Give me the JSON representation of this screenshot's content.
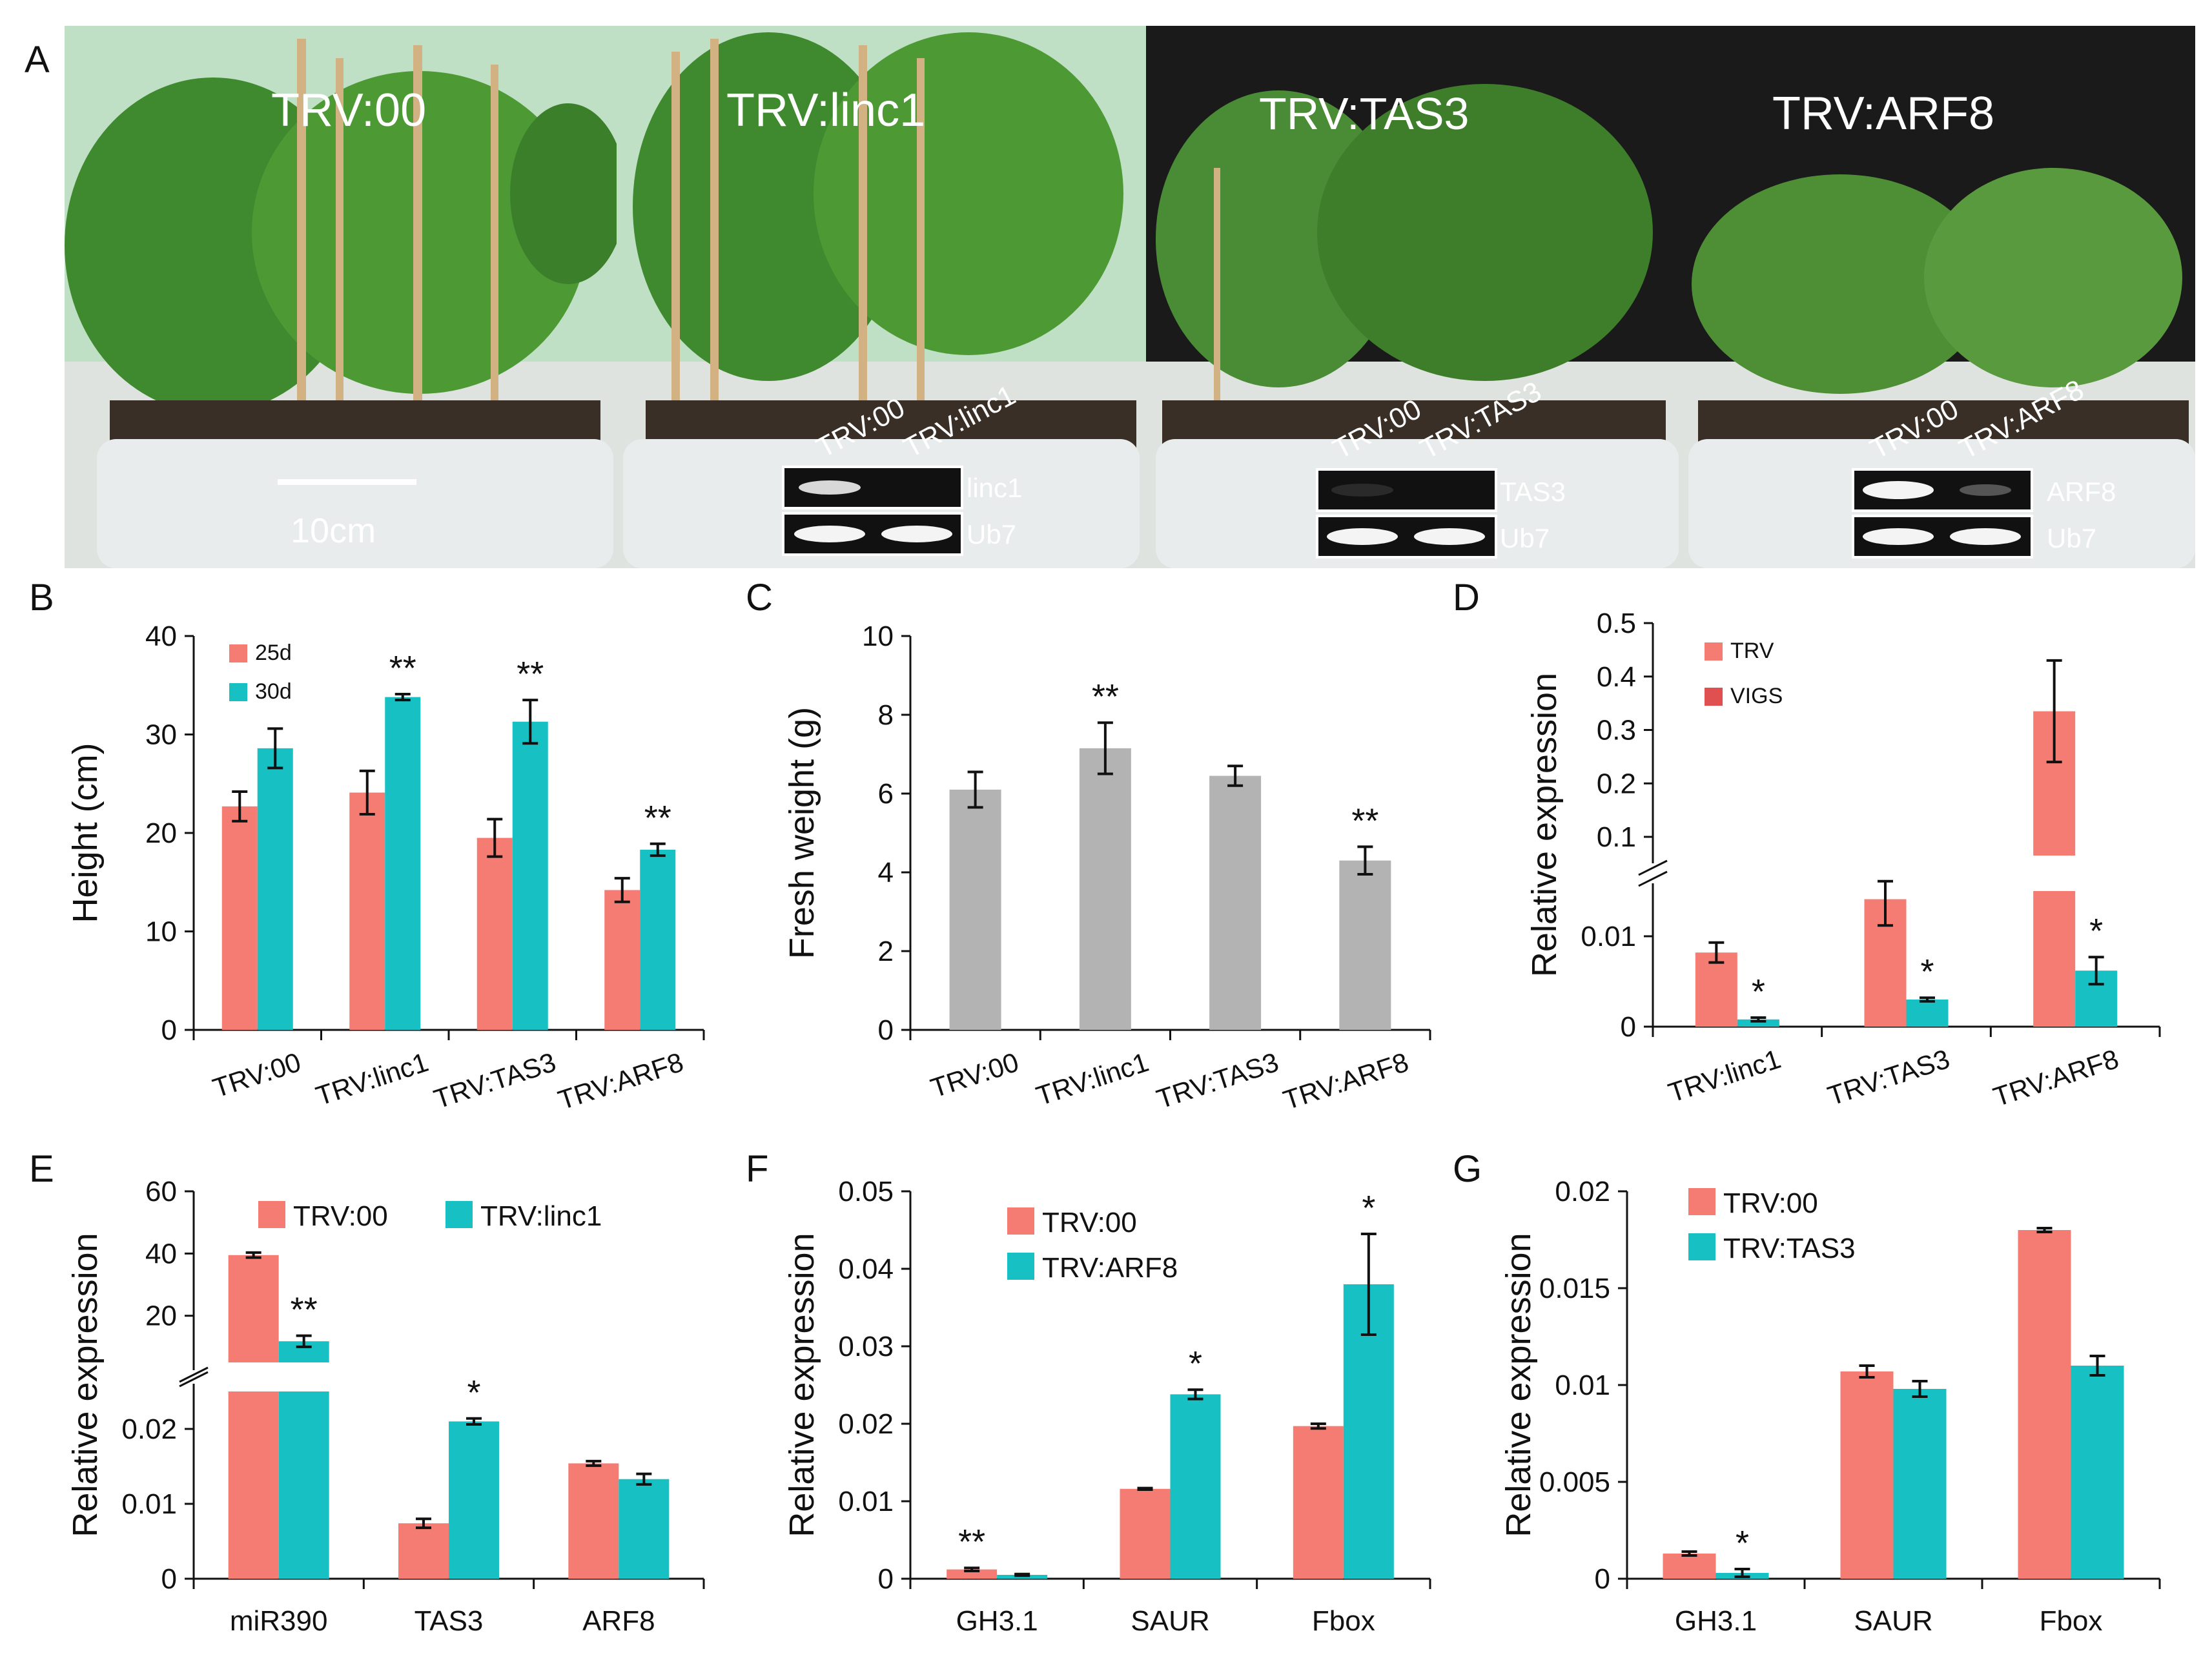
{
  "panel_a": {
    "letter": "A",
    "photos": [
      {
        "title": "TRV:00",
        "scale_label": "10cm"
      },
      {
        "title": "TRV:linc1",
        "gel_col1": "TRV:00",
        "gel_col2": "TRV:linc1",
        "gel_row1": "linc1",
        "gel_row2": "Ub7"
      },
      {
        "title": "TRV:TAS3",
        "gel_col1": "TRV:00",
        "gel_col2": "TRV:TAS3",
        "gel_row1": "TAS3",
        "gel_row2": "Ub7"
      },
      {
        "title": "TRV:ARF8",
        "gel_col1": "TRV:00",
        "gel_col2": "TRV:ARF8",
        "gel_row1": "ARF8",
        "gel_row2": "Ub7"
      }
    ]
  },
  "chart_data": [
    {
      "panel": "B",
      "type": "bar",
      "ylabel": "Height (cm)",
      "ylim": [
        0,
        40
      ],
      "yticks": [
        0,
        10,
        20,
        30,
        40
      ],
      "categories": [
        "TRV:00",
        "TRV:linc1",
        "TRV:TAS3",
        "TRV:ARF8"
      ],
      "series": [
        {
          "name": "25d",
          "color": "#f47c72",
          "values": [
            22.7,
            24.1,
            19.5,
            14.2
          ],
          "errors": [
            1.5,
            2.2,
            1.9,
            1.2
          ]
        },
        {
          "name": "30d",
          "color": "#16c0c3",
          "values": [
            28.6,
            33.8,
            31.3,
            18.3
          ],
          "errors": [
            2.0,
            0.3,
            2.2,
            0.6
          ]
        }
      ],
      "marks": [
        {
          "series": 1,
          "index": 1,
          "text": "**"
        },
        {
          "series": 1,
          "index": 2,
          "text": "**"
        },
        {
          "series": 1,
          "index": 3,
          "text": "**"
        }
      ],
      "legend": "top-left"
    },
    {
      "panel": "C",
      "type": "bar",
      "ylabel": "Fresh weight (g)",
      "ylim": [
        0,
        10
      ],
      "yticks": [
        0,
        2,
        4,
        6,
        8,
        10
      ],
      "categories": [
        "TRV:00",
        "TRV:linc1",
        "TRV:TAS3",
        "TRV:ARF8"
      ],
      "series": [
        {
          "name": "",
          "color": "#b3b3b3",
          "values": [
            6.1,
            7.15,
            6.45,
            4.3
          ],
          "errors": [
            0.45,
            0.65,
            0.25,
            0.35
          ]
        }
      ],
      "marks": [
        {
          "series": 0,
          "index": 1,
          "text": "**"
        },
        {
          "series": 0,
          "index": 3,
          "text": "**"
        }
      ]
    },
    {
      "panel": "D",
      "type": "bar",
      "broken_axis": true,
      "ylabel": "Relative expression",
      "lower_ylim": [
        0,
        0.015
      ],
      "lower_yticks": [
        0,
        0.01
      ],
      "upper_ylim": [
        0.065,
        0.5
      ],
      "upper_yticks": [
        0.1,
        0.2,
        0.3,
        0.4,
        0.5
      ],
      "categories": [
        "TRV:linc1",
        "TRV:TAS3",
        "TRV:ARF8"
      ],
      "series": [
        {
          "name": "TRV",
          "color": "#f47c72",
          "values": [
            0.0082,
            0.0141,
            0.335
          ],
          "errors": [
            0.0011,
            0.0029,
            0.095
          ]
        },
        {
          "name": "VIGS",
          "color": "#16c0c3",
          "legend_color": "#e05050",
          "values": [
            0.0008,
            0.003,
            0.0062
          ],
          "errors": [
            0.0002,
            0.0002,
            0.0015
          ]
        }
      ],
      "marks": [
        {
          "series": 1,
          "index": 0,
          "text": "*"
        },
        {
          "series": 1,
          "index": 1,
          "text": "*"
        },
        {
          "series": 1,
          "index": 2,
          "text": "*"
        }
      ],
      "legend": "top-left"
    },
    {
      "panel": "E",
      "type": "bar",
      "broken_axis": true,
      "ylabel": "Relative expression",
      "lower_ylim": [
        0,
        0.025
      ],
      "lower_yticks": [
        0,
        0.01,
        0.02
      ],
      "upper_ylim": [
        5,
        60
      ],
      "upper_yticks": [
        20,
        40,
        60
      ],
      "categories": [
        "miR390",
        "TAS3",
        "ARF8"
      ],
      "series": [
        {
          "name": "TRV:00",
          "color": "#f47c72",
          "values": [
            39.5,
            0.0074,
            0.0154
          ],
          "errors": [
            0.8,
            0.0006,
            0.0003
          ]
        },
        {
          "name": "TRV:linc1",
          "color": "#16c0c3",
          "values": [
            11.8,
            0.021,
            0.0133
          ],
          "errors": [
            1.8,
            0.0004,
            0.0007
          ]
        }
      ],
      "marks": [
        {
          "series": 1,
          "index": 0,
          "text": "**"
        },
        {
          "series": 1,
          "index": 1,
          "text": "*"
        }
      ],
      "legend": "top"
    },
    {
      "panel": "F",
      "type": "bar",
      "ylabel": "Relative expression",
      "ylim": [
        0,
        0.05
      ],
      "yticks": [
        0,
        0.01,
        0.02,
        0.03,
        0.04,
        0.05
      ],
      "categories": [
        "GH3.1",
        "SAUR",
        "Fbox"
      ],
      "series": [
        {
          "name": "TRV:00",
          "color": "#f47c72",
          "values": [
            0.0012,
            0.0116,
            0.0197
          ],
          "errors": [
            0.0002,
            0.0001,
            0.0003
          ]
        },
        {
          "name": "TRV:ARF8",
          "color": "#16c0c3",
          "values": [
            0.0005,
            0.0238,
            0.038
          ],
          "errors": [
            0.0001,
            0.0006,
            0.0065
          ]
        }
      ],
      "marks": [
        {
          "series": 0,
          "index": 0,
          "text": "**"
        },
        {
          "series": 1,
          "index": 1,
          "text": "*"
        },
        {
          "series": 1,
          "index": 2,
          "text": "*"
        }
      ],
      "legend": "top-left"
    },
    {
      "panel": "G",
      "type": "bar",
      "ylabel": "Relative expression",
      "ylim": [
        0,
        0.02
      ],
      "yticks": [
        0,
        0.005,
        0.01,
        0.015,
        0.02
      ],
      "categories": [
        "GH3.1",
        "SAUR",
        "Fbox"
      ],
      "series": [
        {
          "name": "TRV:00",
          "color": "#f47c72",
          "values": [
            0.0013,
            0.0107,
            0.018
          ],
          "errors": [
            0.0001,
            0.0003,
            0.0001
          ]
        },
        {
          "name": "TRV:TAS3",
          "color": "#16c0c3",
          "values": [
            0.0003,
            0.0098,
            0.011
          ],
          "errors": [
            0.0002,
            0.0004,
            0.0005
          ]
        }
      ],
      "marks": [
        {
          "series": 1,
          "index": 0,
          "text": "*"
        }
      ],
      "legend": "top-left"
    }
  ]
}
